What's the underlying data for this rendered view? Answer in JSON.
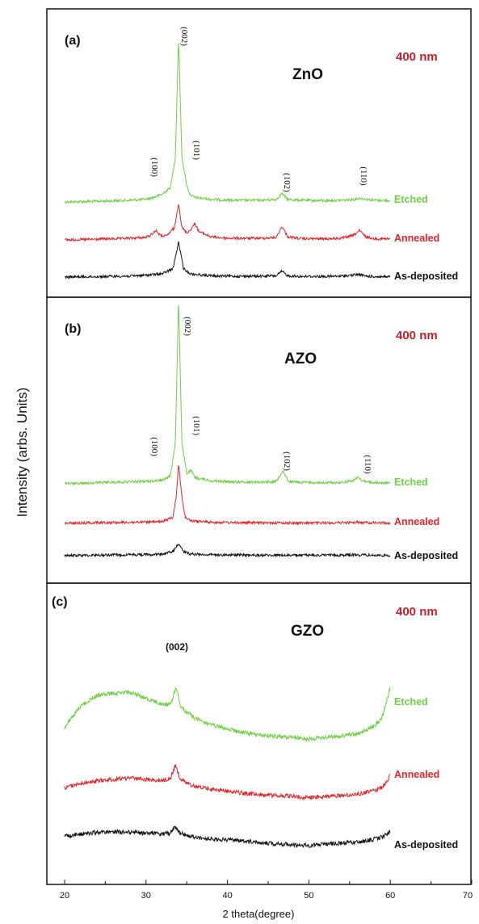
{
  "figure": {
    "ylabel": "Intensity (arbs. Units)",
    "xlabel": "2 theta(degree)",
    "colors": {
      "Etched": "#6fcf45",
      "Annealed": "#e2262b",
      "As-deposited": "#111111",
      "thickness": "#c8202a"
    }
  },
  "chart_data": [
    {
      "type": "line",
      "panel": "(a)",
      "material": "ZnO",
      "thickness": "400 nm",
      "xlim": [
        20,
        70
      ],
      "series": [
        {
          "name": "Etched",
          "x": [
            20,
            24,
            28,
            30,
            31,
            32,
            33,
            33.6,
            34,
            34.4,
            35,
            35.4,
            36,
            38,
            40,
            44,
            46,
            46.7,
            47.4,
            49,
            52,
            54,
            55.5,
            56.3,
            57.2,
            58,
            60
          ],
          "y": [
            0,
            0.3,
            0.8,
            1.3,
            2.3,
            3.8,
            7,
            22,
            80,
            22,
            8,
            3.5,
            2.2,
            1.2,
            0.9,
            0.8,
            1.2,
            4.2,
            1.2,
            0.8,
            0.6,
            0.8,
            1.2,
            1.8,
            1.2,
            0.8,
            0.6
          ]
        },
        {
          "name": "Annealed",
          "x": [
            20,
            24,
            28,
            30,
            30.5,
            31.2,
            31.8,
            32.5,
            33.5,
            34,
            34.4,
            35,
            35.4,
            36,
            36.5,
            38,
            40,
            44,
            46,
            46.7,
            47.4,
            49,
            52,
            54,
            55.5,
            56.2,
            57,
            58,
            60
          ],
          "y": [
            0,
            0.3,
            0.8,
            1.2,
            2.2,
            4.5,
            2,
            1.8,
            6,
            18,
            6,
            3.5,
            4.5,
            8,
            4,
            1.5,
            0.8,
            0.8,
            1.2,
            6.5,
            1.5,
            0.6,
            0.5,
            0.8,
            2.2,
            4.5,
            1.5,
            0.6,
            0.4
          ]
        },
        {
          "name": "As-deposited",
          "x": [
            20,
            24,
            28,
            30,
            32,
            33.3,
            34,
            34.6,
            35.5,
            38,
            40,
            44,
            46,
            46.7,
            47.4,
            49,
            52,
            54,
            56.2,
            57,
            58,
            60
          ],
          "y": [
            0,
            0.2,
            0.5,
            0.9,
            1.6,
            4,
            17,
            4,
            1.5,
            0.6,
            0.4,
            0.4,
            0.6,
            2.8,
            0.6,
            0.3,
            0.3,
            0.4,
            1.3,
            0.4,
            0.2,
            0.1
          ]
        }
      ],
      "peaks": [
        "(100)",
        "(002)",
        "(101)",
        "(102)",
        "(110)"
      ]
    },
    {
      "type": "line",
      "panel": "(b)",
      "material": "AZO",
      "thickness": "400 nm",
      "xlim": [
        20,
        70
      ],
      "series": [
        {
          "name": "Etched",
          "x": [
            20,
            24,
            28,
            30,
            31.2,
            32,
            33,
            33.6,
            34,
            34.4,
            35,
            35.5,
            36,
            38,
            40,
            44,
            46,
            46.8,
            47.5,
            49,
            52,
            54,
            55.5,
            56,
            56.6,
            58,
            60
          ],
          "y": [
            0,
            0.6,
            1,
            1.2,
            1.5,
            1.8,
            4,
            20,
            90,
            20,
            5,
            6.5,
            3,
            1.5,
            1,
            0.8,
            1.2,
            6.5,
            1.2,
            0.7,
            0.5,
            0.7,
            1.6,
            3.2,
            1.4,
            0.6,
            0.4
          ]
        },
        {
          "name": "Annealed",
          "x": [
            20,
            24,
            28,
            30,
            32,
            33.3,
            33.7,
            34,
            34.4,
            34.8,
            35.5,
            38,
            40,
            44,
            48,
            52,
            56,
            58,
            60
          ],
          "y": [
            0,
            0.4,
            0.5,
            0.6,
            0.8,
            3,
            13,
            29,
            13,
            3,
            1.2,
            0.6,
            0.4,
            0.3,
            0.2,
            0.2,
            0.5,
            0.3,
            0.2
          ]
        },
        {
          "name": "As-deposited",
          "x": [
            20,
            24,
            28,
            30,
            32,
            33.3,
            34,
            34.6,
            35.5,
            38,
            40,
            44,
            48,
            52,
            56,
            58,
            60
          ],
          "y": [
            0,
            0.3,
            0.5,
            0.5,
            0.8,
            2,
            6,
            2,
            0.8,
            0.5,
            0.4,
            0.2,
            0.2,
            0.2,
            0.4,
            0.2,
            0.1
          ]
        }
      ],
      "peaks": [
        "(100)",
        "(002)",
        "(101)",
        "(102)",
        "(110)"
      ]
    },
    {
      "type": "line",
      "panel": "(c)",
      "material": "GZO",
      "thickness": "400 nm",
      "xlim": [
        20,
        70
      ],
      "series": [
        {
          "name": "Etched",
          "x": [
            20,
            22,
            24,
            26,
            28,
            30,
            32,
            33,
            33.7,
            34.3,
            35,
            36,
            38,
            40,
            42,
            44,
            46,
            48,
            50,
            52,
            54,
            56,
            58,
            59,
            59.6,
            60
          ],
          "y": [
            1.2,
            4,
            5.4,
            5.6,
            5.8,
            5,
            4.2,
            4.2,
            6.4,
            3.8,
            3.2,
            2.4,
            1.5,
            1,
            0.5,
            0.2,
            0,
            -0.1,
            -0.3,
            -0.1,
            0.1,
            0.4,
            1.3,
            2.5,
            4.8,
            6.6
          ]
        },
        {
          "name": "Annealed",
          "x": [
            20,
            22,
            24,
            26,
            28,
            30,
            32,
            33,
            33.6,
            34.2,
            35,
            36,
            38,
            40,
            42,
            44,
            46,
            48,
            50,
            52,
            54,
            56,
            58,
            59,
            59.6,
            60
          ],
          "y": [
            1,
            1.6,
            1.9,
            2.1,
            2.3,
            2.1,
            2,
            2.2,
            4,
            2.2,
            1.6,
            1.2,
            0.8,
            0.6,
            0.3,
            0.1,
            0,
            -0.1,
            -0.3,
            -0.1,
            0,
            0.2,
            0.6,
            1.1,
            1.9,
            2.6
          ]
        },
        {
          "name": "As-deposited",
          "x": [
            20,
            22,
            24,
            26,
            28,
            30,
            32,
            33,
            33.5,
            34.2,
            35,
            36,
            38,
            40,
            42,
            44,
            46,
            48,
            50,
            52,
            54,
            56,
            58,
            59,
            59.6,
            60
          ],
          "y": [
            0.6,
            0.9,
            1.1,
            1.2,
            1.1,
            1,
            0.9,
            1,
            1.7,
            1,
            0.7,
            0.5,
            0.2,
            0.1,
            0,
            -0.2,
            -0.4,
            -0.5,
            -0.6,
            -0.4,
            -0.3,
            -0.2,
            0.2,
            0.5,
            0.8,
            1.3
          ]
        }
      ],
      "peaks": [
        "(002)"
      ]
    }
  ],
  "xaxis": {
    "ticks": [
      "20",
      "30",
      "40",
      "50",
      "60",
      "70"
    ]
  }
}
